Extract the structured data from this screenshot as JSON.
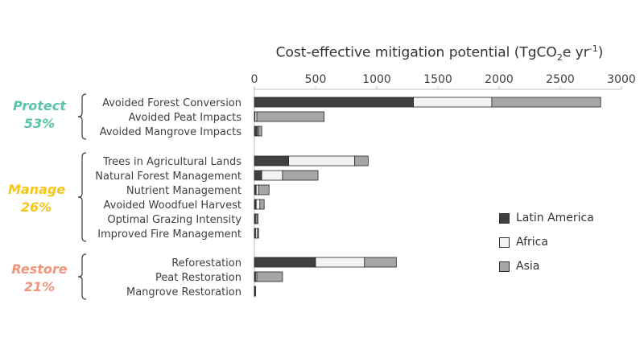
{
  "chart_data": {
    "type": "bar",
    "orientation": "horizontal",
    "stacked": true,
    "title_parts": {
      "pre": "Cost-effective mitigation potential (TgCO",
      "sub": "2",
      "mid": "e yr",
      "sup": "-1",
      "post": ")"
    },
    "xlim": [
      0,
      3000
    ],
    "x_ticks": [
      "0",
      "500",
      "1000",
      "1500",
      "2000",
      "2500",
      "3000"
    ],
    "x_axis_position": "top",
    "grid": false,
    "legend_position": "right",
    "categories": [
      "Avoided Forest Conversion",
      "Avoided Peat Impacts",
      "Avoided Mangrove Impacts",
      "Trees in Agricultural Lands",
      "Natural Forest Management",
      "Nutrient Management",
      "Avoided Woodfuel Harvest",
      "Optimal Grazing Intensity",
      "Improved Fire Management",
      "Reforestation",
      "Peat Restoration",
      "Mangrove Restoration"
    ],
    "series": [
      {
        "name": "Latin America",
        "color": "#404040",
        "values": [
          1300,
          5,
          25,
          280,
          60,
          15,
          15,
          10,
          10,
          500,
          10,
          3
        ]
      },
      {
        "name": "Africa",
        "color": "#f2f2f2",
        "values": [
          640,
          15,
          10,
          540,
          170,
          20,
          30,
          10,
          15,
          400,
          10,
          3
        ]
      },
      {
        "name": "Asia",
        "color": "#a6a6a6",
        "values": [
          890,
          550,
          25,
          110,
          290,
          85,
          35,
          10,
          10,
          260,
          210,
          4
        ]
      }
    ],
    "groups": [
      {
        "name": "Protect",
        "percent": "53%",
        "color": "#5cc4a8",
        "rows": [
          0,
          1,
          2
        ]
      },
      {
        "name": "Manage",
        "percent": "26%",
        "color": "#f5c518",
        "rows": [
          3,
          4,
          5,
          6,
          7,
          8
        ]
      },
      {
        "name": "Restore",
        "percent": "21%",
        "color": "#f0957a",
        "rows": [
          9,
          10,
          11
        ]
      }
    ]
  }
}
